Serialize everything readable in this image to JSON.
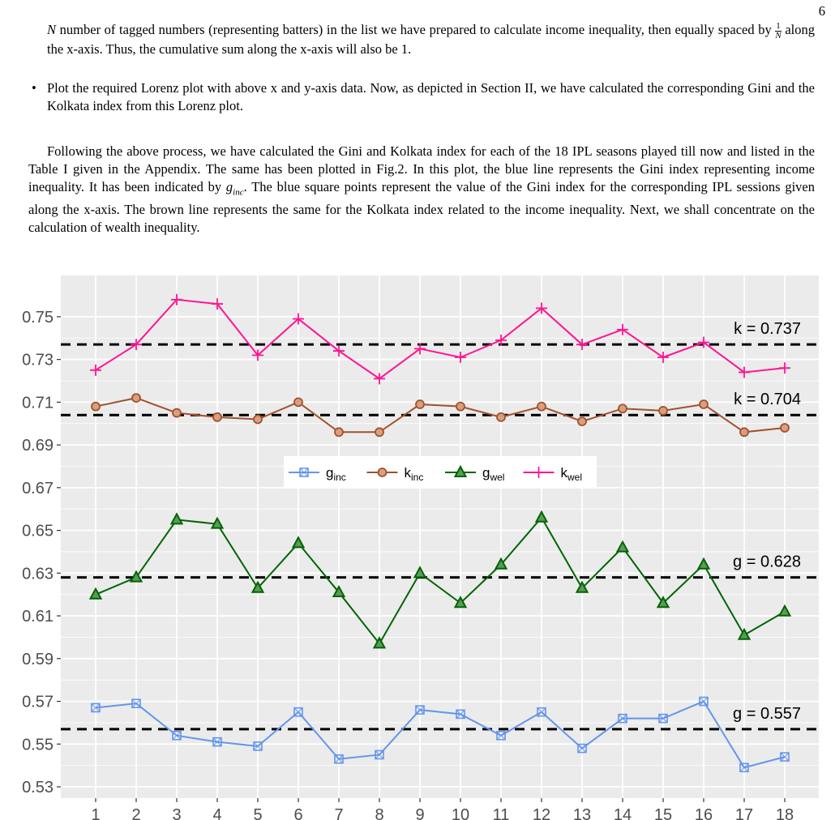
{
  "page_number": "6",
  "continuation": {
    "before": "number of tagged numbers (representing batters) in the list we have prepared to calculate income inequality, then equally spaced by ",
    "fraction_num": "1",
    "fraction_den": "N",
    "lead": "N",
    "after": " along the x-axis. Thus, the cumulative sum along the x-axis will also be 1."
  },
  "bullet": "Plot the required Lorenz plot with above x and y-axis data. Now, as depicted in Section II, we have calculated the corresponding Gini and the Kolkata index from this Lorenz plot.",
  "paragraph": {
    "before": "Following the above process, we have calculated the Gini and Kolkata index for each of the 18 IPL seasons played till now and listed in the Table I given in the Appendix. The same has been plotted in Fig.2. In this plot, the blue line represents the Gini index representing income inequality. It has been indicated by ",
    "math": "g",
    "math_sub": "inc",
    "after": ". The blue square points represent the value of the Gini index for the corresponding IPL sessions given along the x-axis. The brown line represents the same for the Kolkata index related to the income inequality. Next, we shall concentrate on the calculation of wealth inequality."
  },
  "chart_data": {
    "type": "line",
    "categories": [
      "1",
      "2",
      "3",
      "4",
      "5",
      "6",
      "7",
      "8",
      "9",
      "10",
      "11",
      "12",
      "13",
      "14",
      "15",
      "16",
      "17",
      "18"
    ],
    "series": [
      {
        "name": "g",
        "subscript": "inc",
        "color": "#6495ed",
        "marker": "square-cross",
        "values": [
          0.567,
          0.569,
          0.554,
          0.551,
          0.549,
          0.565,
          0.543,
          0.545,
          0.566,
          0.564,
          0.554,
          0.565,
          0.548,
          0.562,
          0.562,
          0.57,
          0.539,
          0.544
        ]
      },
      {
        "name": "k",
        "subscript": "inc",
        "color": "#a0522d",
        "marker": "circle",
        "values": [
          0.708,
          0.712,
          0.705,
          0.703,
          0.702,
          0.71,
          0.696,
          0.696,
          0.709,
          0.708,
          0.703,
          0.708,
          0.701,
          0.707,
          0.706,
          0.709,
          0.696,
          0.698
        ]
      },
      {
        "name": "g",
        "subscript": "wel",
        "color": "#006400",
        "marker": "triangle",
        "values": [
          0.62,
          0.628,
          0.655,
          0.653,
          0.623,
          0.644,
          0.621,
          0.597,
          0.63,
          0.616,
          0.634,
          0.656,
          0.623,
          0.642,
          0.616,
          0.634,
          0.601,
          0.612
        ]
      },
      {
        "name": "k",
        "subscript": "wel",
        "color": "#ff1493",
        "marker": "plus",
        "values": [
          0.725,
          0.737,
          0.758,
          0.756,
          0.732,
          0.749,
          0.734,
          0.721,
          0.735,
          0.731,
          0.739,
          0.754,
          0.737,
          0.744,
          0.731,
          0.738,
          0.724,
          0.726
        ]
      }
    ],
    "reference_lines": [
      {
        "value": 0.737,
        "label": "k = 0.737"
      },
      {
        "value": 0.704,
        "label": "k = 0.704"
      },
      {
        "value": 0.628,
        "label": "g = 0.628"
      },
      {
        "value": 0.557,
        "label": "g = 0.557"
      }
    ],
    "ylim": [
      0.5247,
      0.7693
    ],
    "yticks": [
      0.53,
      0.55,
      0.57,
      0.59,
      0.61,
      0.63,
      0.65,
      0.67,
      0.69,
      0.71,
      0.73,
      0.75
    ],
    "grid": true,
    "legend_position": "center"
  }
}
